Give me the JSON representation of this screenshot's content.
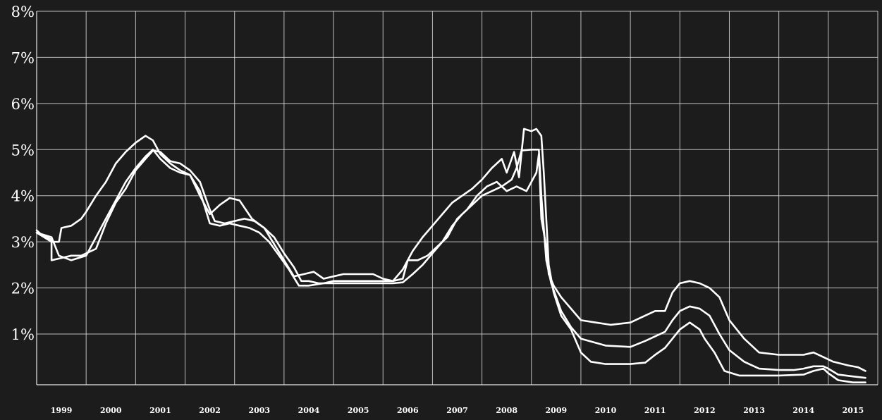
{
  "chart_data": {
    "type": "line",
    "title": "",
    "xlabel": "",
    "ylabel": "",
    "xlim": [
      1998.0,
      2015.0
    ],
    "ylim": [
      -0.1,
      8
    ],
    "y_ticks": [
      {
        "value": 1,
        "label": "1%"
      },
      {
        "value": 2,
        "label": "2%"
      },
      {
        "value": 3,
        "label": "3%"
      },
      {
        "value": 4,
        "label": "4%"
      },
      {
        "value": 5,
        "label": "5%"
      },
      {
        "value": 6,
        "label": "6%"
      },
      {
        "value": 7,
        "label": "7%"
      },
      {
        "value": 8,
        "label": "8%"
      }
    ],
    "x_ticks": [
      {
        "value": 1999,
        "label": "1999"
      },
      {
        "value": 2000,
        "label": "2000"
      },
      {
        "value": 2001,
        "label": "2001"
      },
      {
        "value": 2002,
        "label": "2002"
      },
      {
        "value": 2003,
        "label": "2003"
      },
      {
        "value": 2004,
        "label": "2004"
      },
      {
        "value": 2005,
        "label": "2005"
      },
      {
        "value": 2006,
        "label": "2006"
      },
      {
        "value": 2007,
        "label": "2007"
      },
      {
        "value": 2008,
        "label": "2008"
      },
      {
        "value": 2009,
        "label": "2009"
      },
      {
        "value": 2010,
        "label": "2010"
      },
      {
        "value": 2011,
        "label": "2011"
      },
      {
        "value": 2012,
        "label": "2012"
      },
      {
        "value": 2013,
        "label": "2013"
      },
      {
        "value": 2014,
        "label": "2014"
      },
      {
        "value": 2015,
        "label": "2015"
      }
    ],
    "grid": true,
    "line_color": "#ffffff",
    "series": [
      {
        "points": [
          [
            1998.0,
            3.25
          ],
          [
            1998.1,
            3.15
          ],
          [
            1998.3,
            3.05
          ],
          [
            1998.3,
            2.6
          ],
          [
            1998.5,
            2.65
          ],
          [
            1998.7,
            2.7
          ],
          [
            1998.9,
            2.7
          ],
          [
            1999.2,
            2.85
          ],
          [
            1999.4,
            3.4
          ],
          [
            1999.6,
            3.85
          ],
          [
            1999.8,
            4.15
          ],
          [
            2000.0,
            4.55
          ],
          [
            2000.2,
            4.8
          ],
          [
            2000.35,
            4.98
          ],
          [
            2000.5,
            4.95
          ],
          [
            2000.7,
            4.75
          ],
          [
            2000.9,
            4.7
          ],
          [
            2001.1,
            4.55
          ],
          [
            2001.3,
            4.3
          ],
          [
            2001.5,
            3.7
          ],
          [
            2001.6,
            3.45
          ],
          [
            2001.8,
            3.4
          ],
          [
            2002.0,
            3.45
          ],
          [
            2002.2,
            3.5
          ],
          [
            2002.4,
            3.45
          ],
          [
            2002.6,
            3.3
          ],
          [
            2002.8,
            3.1
          ],
          [
            2003.0,
            2.75
          ],
          [
            2003.2,
            2.45
          ],
          [
            2003.35,
            2.15
          ],
          [
            2003.5,
            2.15
          ],
          [
            2003.7,
            2.1
          ],
          [
            2004.0,
            2.1
          ],
          [
            2004.5,
            2.1
          ],
          [
            2005.0,
            2.1
          ],
          [
            2005.2,
            2.1
          ],
          [
            2005.4,
            2.12
          ],
          [
            2005.6,
            2.3
          ],
          [
            2005.8,
            2.5
          ],
          [
            2006.0,
            2.75
          ],
          [
            2006.2,
            3.0
          ],
          [
            2006.4,
            3.35
          ],
          [
            2006.6,
            3.6
          ],
          [
            2006.8,
            3.8
          ],
          [
            2007.0,
            4.0
          ],
          [
            2007.2,
            4.1
          ],
          [
            2007.4,
            4.2
          ],
          [
            2007.6,
            4.35
          ],
          [
            2007.7,
            4.6
          ],
          [
            2007.8,
            4.98
          ],
          [
            2008.0,
            5.0
          ],
          [
            2008.15,
            5.0
          ],
          [
            2008.2,
            4.0
          ],
          [
            2008.25,
            3.3
          ],
          [
            2008.3,
            2.6
          ],
          [
            2008.4,
            2.1
          ],
          [
            2008.6,
            1.5
          ],
          [
            2008.8,
            1.15
          ],
          [
            2009.0,
            0.9
          ],
          [
            2009.5,
            0.75
          ],
          [
            2010.0,
            0.72
          ],
          [
            2010.3,
            0.85
          ],
          [
            2010.5,
            0.95
          ],
          [
            2010.7,
            1.05
          ],
          [
            2010.85,
            1.3
          ],
          [
            2011.0,
            1.5
          ],
          [
            2011.2,
            1.6
          ],
          [
            2011.4,
            1.55
          ],
          [
            2011.6,
            1.4
          ],
          [
            2011.8,
            1.0
          ],
          [
            2012.0,
            0.65
          ],
          [
            2012.3,
            0.4
          ],
          [
            2012.6,
            0.25
          ],
          [
            2013.0,
            0.22
          ],
          [
            2013.3,
            0.22
          ],
          [
            2013.5,
            0.25
          ],
          [
            2013.7,
            0.3
          ],
          [
            2013.9,
            0.3
          ],
          [
            2014.0,
            0.25
          ],
          [
            2014.2,
            0.12
          ],
          [
            2014.5,
            0.08
          ],
          [
            2014.75,
            0.05
          ]
        ]
      },
      {
        "points": [
          [
            1998.0,
            3.2
          ],
          [
            1998.3,
            3.0
          ],
          [
            1998.45,
            3.0
          ],
          [
            1998.5,
            3.3
          ],
          [
            1998.7,
            3.35
          ],
          [
            1998.9,
            3.5
          ],
          [
            1999.0,
            3.65
          ],
          [
            1999.2,
            4.0
          ],
          [
            1999.4,
            4.3
          ],
          [
            1999.6,
            4.7
          ],
          [
            1999.8,
            4.95
          ],
          [
            2000.0,
            5.15
          ],
          [
            2000.2,
            5.3
          ],
          [
            2000.35,
            5.2
          ],
          [
            2000.5,
            4.9
          ],
          [
            2000.7,
            4.7
          ],
          [
            2000.9,
            4.55
          ],
          [
            2001.1,
            4.45
          ],
          [
            2001.3,
            4.0
          ],
          [
            2001.5,
            3.6
          ],
          [
            2001.7,
            3.8
          ],
          [
            2001.9,
            3.95
          ],
          [
            2002.1,
            3.9
          ],
          [
            2002.35,
            3.5
          ],
          [
            2002.6,
            3.3
          ],
          [
            2002.8,
            2.95
          ],
          [
            2003.0,
            2.6
          ],
          [
            2003.2,
            2.25
          ],
          [
            2003.4,
            2.3
          ],
          [
            2003.6,
            2.35
          ],
          [
            2003.8,
            2.2
          ],
          [
            2004.0,
            2.25
          ],
          [
            2004.2,
            2.3
          ],
          [
            2004.5,
            2.3
          ],
          [
            2004.8,
            2.3
          ],
          [
            2005.0,
            2.2
          ],
          [
            2005.2,
            2.15
          ],
          [
            2005.4,
            2.4
          ],
          [
            2005.6,
            2.8
          ],
          [
            2005.8,
            3.1
          ],
          [
            2006.0,
            3.35
          ],
          [
            2006.2,
            3.6
          ],
          [
            2006.4,
            3.85
          ],
          [
            2006.6,
            4.0
          ],
          [
            2006.8,
            4.15
          ],
          [
            2007.0,
            4.35
          ],
          [
            2007.2,
            4.6
          ],
          [
            2007.4,
            4.8
          ],
          [
            2007.5,
            4.5
          ],
          [
            2007.65,
            4.95
          ],
          [
            2007.75,
            4.4
          ],
          [
            2007.85,
            5.45
          ],
          [
            2008.0,
            5.4
          ],
          [
            2008.1,
            5.45
          ],
          [
            2008.2,
            5.3
          ],
          [
            2008.25,
            4.5
          ],
          [
            2008.3,
            3.5
          ],
          [
            2008.35,
            2.5
          ],
          [
            2008.45,
            1.9
          ],
          [
            2008.6,
            1.4
          ],
          [
            2008.8,
            1.1
          ],
          [
            2009.0,
            0.6
          ],
          [
            2009.2,
            0.4
          ],
          [
            2009.5,
            0.35
          ],
          [
            2010.0,
            0.35
          ],
          [
            2010.3,
            0.38
          ],
          [
            2010.5,
            0.55
          ],
          [
            2010.7,
            0.7
          ],
          [
            2010.85,
            0.9
          ],
          [
            2011.0,
            1.1
          ],
          [
            2011.2,
            1.25
          ],
          [
            2011.4,
            1.1
          ],
          [
            2011.5,
            0.9
          ],
          [
            2011.7,
            0.6
          ],
          [
            2011.9,
            0.2
          ],
          [
            2012.2,
            0.1
          ],
          [
            2013.0,
            0.1
          ],
          [
            2013.5,
            0.12
          ],
          [
            2013.7,
            0.2
          ],
          [
            2013.9,
            0.25
          ],
          [
            2014.0,
            0.15
          ],
          [
            2014.2,
            0.0
          ],
          [
            2014.5,
            -0.05
          ],
          [
            2014.75,
            -0.05
          ]
        ]
      },
      {
        "points": [
          [
            1998.0,
            3.2
          ],
          [
            1998.3,
            3.1
          ],
          [
            1998.45,
            2.7
          ],
          [
            1998.7,
            2.6
          ],
          [
            1999.0,
            2.7
          ],
          [
            1999.2,
            3.1
          ],
          [
            1999.4,
            3.5
          ],
          [
            1999.6,
            3.9
          ],
          [
            1999.8,
            4.3
          ],
          [
            2000.0,
            4.6
          ],
          [
            2000.2,
            4.85
          ],
          [
            2000.35,
            5.0
          ],
          [
            2000.5,
            4.8
          ],
          [
            2000.7,
            4.6
          ],
          [
            2000.9,
            4.5
          ],
          [
            2001.1,
            4.45
          ],
          [
            2001.3,
            4.1
          ],
          [
            2001.5,
            3.4
          ],
          [
            2001.7,
            3.35
          ],
          [
            2001.9,
            3.4
          ],
          [
            2002.1,
            3.35
          ],
          [
            2002.3,
            3.3
          ],
          [
            2002.5,
            3.2
          ],
          [
            2002.7,
            3.0
          ],
          [
            2002.9,
            2.7
          ],
          [
            2003.1,
            2.4
          ],
          [
            2003.3,
            2.05
          ],
          [
            2003.5,
            2.05
          ],
          [
            2003.8,
            2.1
          ],
          [
            2004.0,
            2.15
          ],
          [
            2004.3,
            2.15
          ],
          [
            2004.6,
            2.15
          ],
          [
            2004.9,
            2.15
          ],
          [
            2005.2,
            2.15
          ],
          [
            2005.4,
            2.2
          ],
          [
            2005.5,
            2.6
          ],
          [
            2005.7,
            2.6
          ],
          [
            2005.9,
            2.7
          ],
          [
            2006.1,
            2.9
          ],
          [
            2006.3,
            3.1
          ],
          [
            2006.5,
            3.5
          ],
          [
            2006.7,
            3.7
          ],
          [
            2006.9,
            4.0
          ],
          [
            2007.1,
            4.2
          ],
          [
            2007.3,
            4.3
          ],
          [
            2007.5,
            4.1
          ],
          [
            2007.7,
            4.2
          ],
          [
            2007.9,
            4.1
          ],
          [
            2008.1,
            4.5
          ],
          [
            2008.15,
            4.9
          ],
          [
            2008.2,
            3.5
          ],
          [
            2008.3,
            2.9
          ],
          [
            2008.35,
            2.3
          ],
          [
            2008.45,
            2.05
          ],
          [
            2008.6,
            1.8
          ],
          [
            2008.8,
            1.55
          ],
          [
            2009.0,
            1.3
          ],
          [
            2009.3,
            1.25
          ],
          [
            2009.6,
            1.2
          ],
          [
            2010.0,
            1.25
          ],
          [
            2010.2,
            1.35
          ],
          [
            2010.5,
            1.5
          ],
          [
            2010.7,
            1.5
          ],
          [
            2010.85,
            1.9
          ],
          [
            2011.0,
            2.1
          ],
          [
            2011.2,
            2.15
          ],
          [
            2011.4,
            2.1
          ],
          [
            2011.6,
            2.0
          ],
          [
            2011.8,
            1.8
          ],
          [
            2012.0,
            1.3
          ],
          [
            2012.3,
            0.9
          ],
          [
            2012.6,
            0.6
          ],
          [
            2013.0,
            0.55
          ],
          [
            2013.3,
            0.55
          ],
          [
            2013.5,
            0.55
          ],
          [
            2013.7,
            0.6
          ],
          [
            2013.9,
            0.5
          ],
          [
            2014.1,
            0.4
          ],
          [
            2014.4,
            0.32
          ],
          [
            2014.6,
            0.28
          ],
          [
            2014.75,
            0.2
          ]
        ]
      }
    ]
  }
}
